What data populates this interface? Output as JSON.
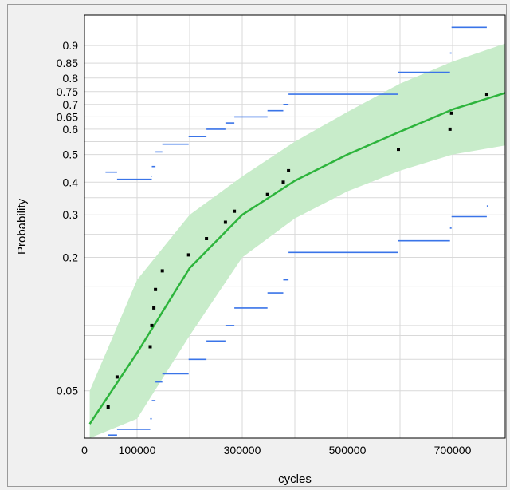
{
  "chart_data": {
    "type": "scatter",
    "title": "",
    "xlabel": "cycles",
    "ylabel": "Probability",
    "xlim": [
      0,
      800000
    ],
    "ylim": [
      0.03,
      0.96
    ],
    "y_scale": "weibull-probability",
    "grid": true,
    "x_ticks": [
      {
        "value": 0,
        "label": "0"
      },
      {
        "value": 100000,
        "label": "100000"
      },
      {
        "value": 300000,
        "label": "300000"
      },
      {
        "value": 500000,
        "label": "500000"
      },
      {
        "value": 700000,
        "label": "700000"
      }
    ],
    "x_grid": [
      0,
      100000,
      200000,
      300000,
      400000,
      500000,
      600000,
      700000
    ],
    "y_ticks": [
      {
        "value": 0.05,
        "label": "0.05"
      },
      {
        "value": 0.2,
        "label": "0.2"
      },
      {
        "value": 0.3,
        "label": "0.3"
      },
      {
        "value": 0.4,
        "label": "0.4"
      },
      {
        "value": 0.5,
        "label": "0.5"
      },
      {
        "value": 0.6,
        "label": "0.6"
      },
      {
        "value": 0.65,
        "label": "0.65"
      },
      {
        "value": 0.7,
        "label": "0.7"
      },
      {
        "value": 0.75,
        "label": "0.75"
      },
      {
        "value": 0.8,
        "label": "0.8"
      },
      {
        "value": 0.85,
        "label": "0.85"
      },
      {
        "value": 0.9,
        "label": "0.9"
      }
    ],
    "y_grid": [
      0.05,
      0.07,
      0.09,
      0.1,
      0.15,
      0.2,
      0.25,
      0.3,
      0.35,
      0.4,
      0.45,
      0.5,
      0.55,
      0.6,
      0.65,
      0.7,
      0.75,
      0.8,
      0.85,
      0.9
    ],
    "colors": {
      "points": "#000000",
      "fit": "#2db43c",
      "band": "#c8ecca",
      "bounds": "#3a74e8",
      "grid": "#d9d9d9"
    },
    "points": [
      {
        "x": 45000,
        "y": 0.042
      },
      {
        "x": 62000,
        "y": 0.058
      },
      {
        "x": 125000,
        "y": 0.08
      },
      {
        "x": 128000,
        "y": 0.1
      },
      {
        "x": 132000,
        "y": 0.12
      },
      {
        "x": 135000,
        "y": 0.145
      },
      {
        "x": 148000,
        "y": 0.175
      },
      {
        "x": 198000,
        "y": 0.205
      },
      {
        "x": 232000,
        "y": 0.24
      },
      {
        "x": 268000,
        "y": 0.28
      },
      {
        "x": 285000,
        "y": 0.31
      },
      {
        "x": 348000,
        "y": 0.36
      },
      {
        "x": 378000,
        "y": 0.4
      },
      {
        "x": 388000,
        "y": 0.44
      },
      {
        "x": 597000,
        "y": 0.52
      },
      {
        "x": 695000,
        "y": 0.6
      },
      {
        "x": 698000,
        "y": 0.665
      },
      {
        "x": 765000,
        "y": 0.74
      }
    ],
    "fit_line": [
      {
        "x": 10000,
        "y": 0.035
      },
      {
        "x": 100000,
        "y": 0.075
      },
      {
        "x": 200000,
        "y": 0.18
      },
      {
        "x": 300000,
        "y": 0.3
      },
      {
        "x": 400000,
        "y": 0.405
      },
      {
        "x": 500000,
        "y": 0.5
      },
      {
        "x": 600000,
        "y": 0.59
      },
      {
        "x": 700000,
        "y": 0.68
      },
      {
        "x": 800000,
        "y": 0.745
      }
    ],
    "confidence_band": {
      "upper": [
        {
          "x": 10000,
          "y": 0.05
        },
        {
          "x": 100000,
          "y": 0.16
        },
        {
          "x": 200000,
          "y": 0.3
        },
        {
          "x": 300000,
          "y": 0.42
        },
        {
          "x": 400000,
          "y": 0.55
        },
        {
          "x": 500000,
          "y": 0.67
        },
        {
          "x": 600000,
          "y": 0.78
        },
        {
          "x": 700000,
          "y": 0.855
        },
        {
          "x": 800000,
          "y": 0.905
        }
      ],
      "lower": [
        {
          "x": 10000,
          "y": 0.03
        },
        {
          "x": 100000,
          "y": 0.037
        },
        {
          "x": 200000,
          "y": 0.09
        },
        {
          "x": 300000,
          "y": 0.2
        },
        {
          "x": 400000,
          "y": 0.29
        },
        {
          "x": 500000,
          "y": 0.37
        },
        {
          "x": 600000,
          "y": 0.44
        },
        {
          "x": 700000,
          "y": 0.5
        },
        {
          "x": 800000,
          "y": 0.535
        }
      ]
    },
    "upper_bounds": [
      {
        "x1": 40000,
        "x2": 62000,
        "y": 0.435
      },
      {
        "x1": 62000,
        "x2": 128000,
        "y": 0.41
      },
      {
        "x1": 126000,
        "x2": 128000,
        "y": 0.42
      },
      {
        "x1": 128000,
        "x2": 135000,
        "y": 0.455
      },
      {
        "x1": 135000,
        "x2": 148000,
        "y": 0.51
      },
      {
        "x1": 148000,
        "x2": 198000,
        "y": 0.54
      },
      {
        "x1": 198000,
        "x2": 232000,
        "y": 0.57
      },
      {
        "x1": 232000,
        "x2": 268000,
        "y": 0.6
      },
      {
        "x1": 268000,
        "x2": 285000,
        "y": 0.625
      },
      {
        "x1": 285000,
        "x2": 348000,
        "y": 0.65
      },
      {
        "x1": 348000,
        "x2": 378000,
        "y": 0.675
      },
      {
        "x1": 378000,
        "x2": 388000,
        "y": 0.7
      },
      {
        "x1": 388000,
        "x2": 597000,
        "y": 0.74
      },
      {
        "x1": 597000,
        "x2": 695000,
        "y": 0.82
      },
      {
        "x1": 695000,
        "x2": 698000,
        "y": 0.88
      },
      {
        "x1": 698000,
        "x2": 765000,
        "y": 0.94
      }
    ],
    "lower_bounds": [
      {
        "x1": 45000,
        "x2": 62000,
        "y": 0.031
      },
      {
        "x1": 62000,
        "x2": 125000,
        "y": 0.033
      },
      {
        "x1": 125000,
        "x2": 128000,
        "y": 0.037
      },
      {
        "x1": 128000,
        "x2": 135000,
        "y": 0.045
      },
      {
        "x1": 135000,
        "x2": 148000,
        "y": 0.055
      },
      {
        "x1": 148000,
        "x2": 198000,
        "y": 0.06
      },
      {
        "x1": 198000,
        "x2": 232000,
        "y": 0.07
      },
      {
        "x1": 232000,
        "x2": 268000,
        "y": 0.085
      },
      {
        "x1": 268000,
        "x2": 285000,
        "y": 0.1
      },
      {
        "x1": 285000,
        "x2": 348000,
        "y": 0.12
      },
      {
        "x1": 348000,
        "x2": 378000,
        "y": 0.14
      },
      {
        "x1": 378000,
        "x2": 388000,
        "y": 0.16
      },
      {
        "x1": 388000,
        "x2": 597000,
        "y": 0.21
      },
      {
        "x1": 597000,
        "x2": 695000,
        "y": 0.235
      },
      {
        "x1": 695000,
        "x2": 698000,
        "y": 0.265
      },
      {
        "x1": 698000,
        "x2": 765000,
        "y": 0.295
      },
      {
        "x1": 765000,
        "x2": 768000,
        "y": 0.325
      }
    ]
  }
}
